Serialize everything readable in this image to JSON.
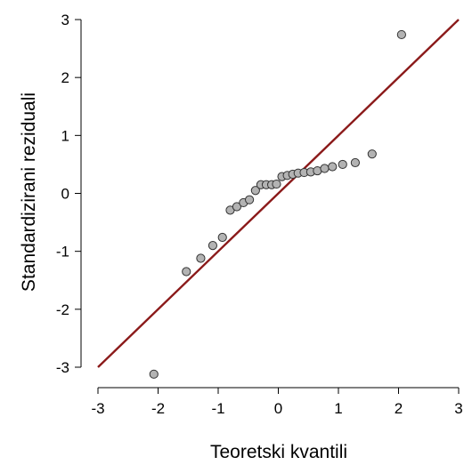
{
  "chart_data": {
    "type": "scatter",
    "title": "",
    "xlabel": "Teoretski kvantili",
    "ylabel": "Standardizirani reziduali",
    "xlim": [
      -3,
      3
    ],
    "ylim": [
      -3,
      3
    ],
    "x_ticks": [
      "-3",
      "-2",
      "-1",
      "0",
      "1",
      "2",
      "3"
    ],
    "y_ticks": [
      "-3",
      "-2",
      "-1",
      "0",
      "1",
      "2",
      "3"
    ],
    "grid": false,
    "colors": {
      "points": "#b3b3b3",
      "point_edge": "#333333",
      "reference_line": "#8b1a1a"
    },
    "reference_line": {
      "x": [
        -3,
        3
      ],
      "y": [
        -3,
        3
      ]
    },
    "series": [
      {
        "x": [
          -2.07,
          -1.53,
          -1.29,
          -1.09,
          -0.93,
          -0.8,
          -0.69,
          -0.58,
          -0.48,
          -0.38,
          -0.29,
          -0.2,
          -0.11,
          -0.03,
          0.06,
          0.15,
          0.24,
          0.33,
          0.43,
          0.54,
          0.65,
          0.77,
          0.9,
          1.07,
          1.28,
          1.56,
          2.05
        ],
        "y": [
          -3.12,
          -1.35,
          -1.12,
          -0.9,
          -0.76,
          -0.29,
          -0.23,
          -0.16,
          -0.11,
          0.05,
          0.15,
          0.15,
          0.15,
          0.16,
          0.29,
          0.31,
          0.33,
          0.35,
          0.36,
          0.37,
          0.39,
          0.43,
          0.46,
          0.5,
          0.53,
          0.68,
          2.74
        ]
      }
    ]
  }
}
